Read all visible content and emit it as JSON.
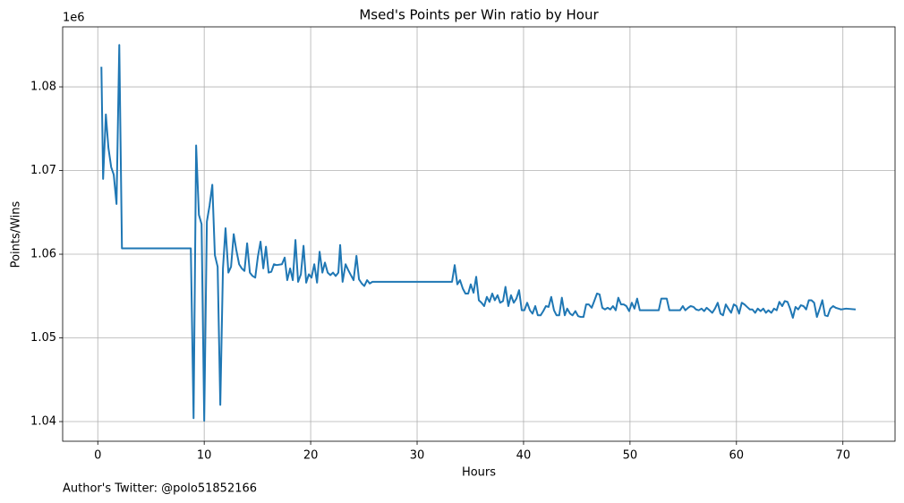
{
  "chart_data": {
    "type": "line",
    "title": "Msed's Points per Win ratio by Hour",
    "xlabel": "Hours",
    "ylabel": "Points/Wins",
    "y_offset_label": "1e6",
    "annotation": "Author's Twitter: @polo51852166",
    "color": "#1f77b4",
    "grid": true,
    "xlim": [
      -3.3,
      74.9
    ],
    "ylim": [
      1037650,
      1087170
    ],
    "xticks": [
      0,
      10,
      20,
      30,
      40,
      50,
      60,
      70
    ],
    "yticks": [
      {
        "value": 1040000,
        "label": "1.04"
      },
      {
        "value": 1050000,
        "label": "1.05"
      },
      {
        "value": 1060000,
        "label": "1.06"
      },
      {
        "value": 1070000,
        "label": "1.07"
      },
      {
        "value": 1080000,
        "label": "1.08"
      }
    ],
    "x": [
      0.34,
      0.5,
      0.76,
      1.0,
      1.26,
      1.5,
      1.76,
      2.02,
      2.27,
      8.74,
      9.0,
      9.24,
      9.5,
      9.75,
      10.0,
      10.25,
      10.5,
      10.76,
      11.0,
      11.26,
      11.51,
      11.76,
      12.0,
      12.27,
      12.52,
      12.77,
      13.0,
      13.28,
      13.53,
      13.78,
      14.03,
      14.29,
      14.54,
      14.79,
      15.04,
      15.29,
      15.55,
      15.8,
      16.05,
      16.3,
      16.55,
      16.8,
      17.3,
      17.56,
      17.8,
      18.07,
      18.32,
      18.57,
      18.82,
      19.08,
      19.33,
      19.58,
      19.83,
      20.08,
      20.34,
      20.6,
      20.84,
      21.1,
      21.34,
      21.6,
      21.85,
      22.1,
      22.35,
      22.6,
      22.77,
      23.0,
      23.28,
      23.53,
      23.78,
      24.03,
      24.3,
      24.54,
      24.8,
      25.04,
      25.3,
      25.55,
      25.8,
      33.28,
      33.53,
      33.78,
      34.03,
      34.29,
      34.54,
      34.8,
      35.04,
      35.3,
      35.55,
      35.8,
      36.05,
      36.3,
      36.55,
      36.8,
      37.06,
      37.3,
      37.56,
      37.8,
      38.07,
      38.3,
      38.57,
      38.82,
      39.08,
      39.33,
      39.58,
      39.83,
      40.08,
      40.34,
      40.6,
      40.84,
      41.1,
      41.34,
      41.6,
      41.85,
      42.1,
      42.35,
      42.6,
      42.86,
      43.1,
      43.35,
      43.6,
      43.87,
      44.1,
      44.37,
      44.6,
      44.87,
      45.13,
      45.38,
      45.63,
      45.88,
      46.13,
      46.4,
      46.64,
      46.9,
      47.14,
      47.4,
      47.65,
      47.9,
      48.15,
      48.4,
      48.66,
      48.9,
      49.16,
      49.41,
      49.66,
      49.92,
      50.17,
      50.42,
      50.67,
      50.92,
      52.7,
      52.94,
      53.45,
      53.7,
      54.7,
      54.96,
      55.2,
      55.46,
      55.7,
      55.97,
      56.2,
      56.46,
      56.72,
      56.97,
      57.2,
      57.47,
      57.73,
      57.98,
      58.24,
      58.5,
      58.74,
      59.0,
      59.24,
      59.5,
      59.75,
      60.0,
      60.25,
      60.5,
      60.75,
      61.0,
      61.26,
      61.5,
      61.76,
      62.0,
      62.27,
      62.52,
      62.77,
      63.0,
      63.28,
      63.53,
      63.78,
      64.03,
      64.3,
      64.54,
      64.8,
      65.04,
      65.3,
      65.55,
      65.8,
      66.05,
      66.3,
      66.55,
      66.8,
      67.05,
      67.3,
      67.56,
      67.8,
      68.07,
      68.32,
      68.57,
      68.82,
      69.08,
      69.33,
      69.58,
      69.83,
      70.3,
      71.2
    ],
    "values": [
      1082400,
      1069000,
      1076700,
      1072700,
      1070400,
      1069500,
      1066000,
      1085000,
      1060700,
      1060700,
      1040400,
      1073000,
      1064700,
      1063600,
      1040100,
      1063900,
      1065800,
      1068300,
      1059900,
      1058500,
      1042000,
      1058300,
      1063100,
      1057800,
      1058500,
      1062400,
      1060600,
      1058800,
      1058300,
      1058000,
      1061300,
      1057800,
      1057400,
      1057200,
      1059700,
      1061500,
      1058300,
      1060900,
      1057800,
      1057900,
      1058800,
      1058700,
      1058800,
      1059600,
      1056900,
      1058300,
      1056900,
      1061700,
      1056700,
      1057600,
      1061000,
      1056600,
      1057600,
      1057200,
      1058800,
      1056600,
      1060300,
      1057800,
      1059000,
      1057800,
      1057500,
      1057800,
      1057400,
      1057800,
      1061100,
      1056700,
      1058800,
      1058100,
      1057500,
      1056900,
      1059800,
      1057000,
      1056500,
      1056200,
      1056900,
      1056500,
      1056700,
      1056700,
      1058700,
      1056400,
      1056900,
      1055900,
      1055300,
      1055300,
      1056400,
      1055400,
      1057300,
      1054500,
      1054200,
      1053800,
      1054900,
      1054300,
      1055300,
      1054500,
      1055100,
      1054200,
      1054400,
      1056100,
      1053800,
      1055100,
      1054200,
      1054700,
      1055700,
      1053300,
      1053300,
      1054200,
      1053300,
      1052900,
      1053800,
      1052700,
      1052700,
      1053200,
      1053800,
      1053700,
      1054900,
      1053300,
      1052700,
      1052700,
      1054800,
      1052700,
      1053500,
      1052900,
      1052700,
      1053200,
      1052600,
      1052500,
      1052500,
      1054000,
      1054000,
      1053600,
      1054400,
      1055300,
      1055200,
      1053600,
      1053400,
      1053600,
      1053400,
      1053800,
      1053300,
      1054800,
      1054000,
      1054000,
      1053800,
      1053200,
      1054200,
      1053500,
      1054700,
      1053300,
      1053300,
      1054700,
      1054700,
      1053300,
      1053300,
      1053800,
      1053300,
      1053600,
      1053800,
      1053700,
      1053400,
      1053300,
      1053500,
      1053200,
      1053600,
      1053300,
      1053000,
      1053500,
      1054200,
      1052900,
      1052700,
      1054000,
      1053500,
      1053000,
      1054000,
      1053800,
      1052900,
      1054200,
      1054000,
      1053700,
      1053400,
      1053400,
      1053000,
      1053500,
      1053200,
      1053500,
      1053000,
      1053300,
      1053000,
      1053500,
      1053300,
      1054300,
      1053800,
      1054400,
      1054300,
      1053500,
      1052400,
      1053700,
      1053400,
      1053900,
      1053800,
      1053400,
      1054500,
      1054500,
      1054200,
      1052500,
      1053400,
      1054500,
      1052700,
      1052600,
      1053500,
      1053800,
      1053600,
      1053500,
      1053400,
      1053500,
      1053400
    ]
  }
}
